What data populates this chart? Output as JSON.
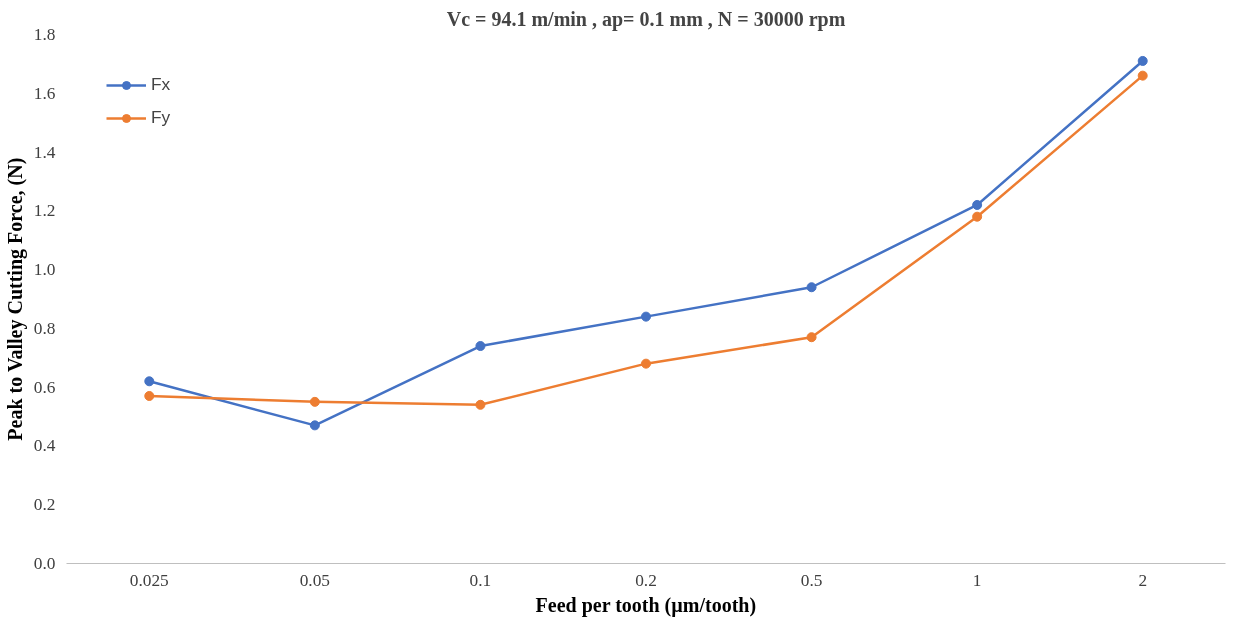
{
  "chart_data": {
    "type": "line",
    "title": "Vc = 94.1 m/min , ap= 0.1 mm , N = 30000 rpm",
    "xlabel": "Feed per tooth (µm/tooth)",
    "ylabel": "Peak to Valley Cutting Force, (N)",
    "categories": [
      "0.025",
      "0.05",
      "0.1",
      "0.2",
      "0.5",
      "1",
      "2"
    ],
    "series": [
      {
        "name": "Fx",
        "color": "#4472c4",
        "values": [
          0.62,
          0.47,
          0.74,
          0.84,
          0.94,
          1.22,
          1.71
        ]
      },
      {
        "name": "Fy",
        "color": "#ed7d31",
        "values": [
          0.57,
          0.55,
          0.54,
          0.68,
          0.77,
          1.18,
          1.66
        ]
      }
    ],
    "ylim": [
      0,
      1.8
    ],
    "yticks": [
      {
        "value": 0,
        "label": "0.0"
      },
      {
        "value": 0.2,
        "label": "0.2"
      },
      {
        "value": 0.4,
        "label": "0.4"
      },
      {
        "value": 0.6,
        "label": "0.6"
      },
      {
        "value": 0.8,
        "label": "0.8"
      },
      {
        "value": 1.0,
        "label": "1.0"
      },
      {
        "value": 1.2,
        "label": "1.2"
      },
      {
        "value": 1.4,
        "label": "1.4"
      },
      {
        "value": 1.6,
        "label": "1.6"
      },
      {
        "value": 1.8,
        "label": "1.8"
      }
    ],
    "legend": "top left",
    "marker": "circle",
    "line_style": "solid",
    "grid": false
  }
}
